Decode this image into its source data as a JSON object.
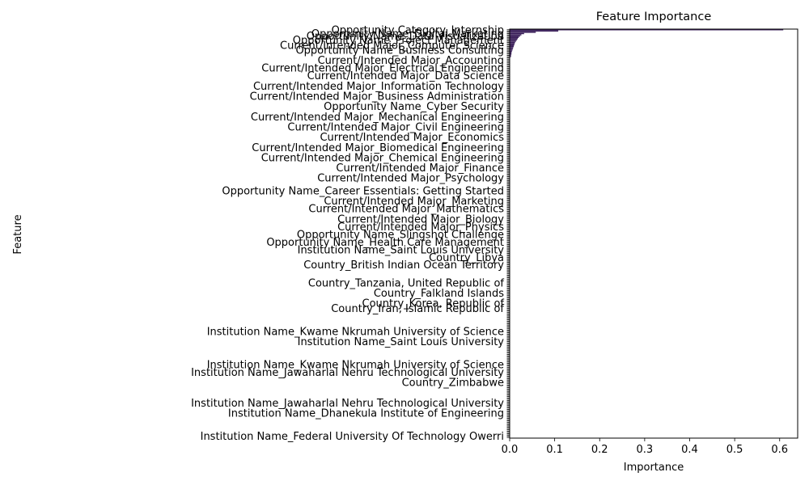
{
  "chart_data": {
    "type": "bar",
    "orientation": "horizontal",
    "title": "Feature Importance",
    "xlabel": "Importance",
    "ylabel": "Feature",
    "xlim": [
      0,
      0.64
    ],
    "xticks": [
      "0.0",
      "0.1",
      "0.2",
      "0.3",
      "0.4",
      "0.5",
      "0.6"
    ],
    "grid": false,
    "legend": "none",
    "bar_color": "#3b1f5a",
    "top_values": [
      0.608,
      0.108,
      0.058,
      0.032,
      0.026,
      0.023,
      0.02,
      0.018,
      0.016,
      0.014,
      0.012,
      0.011,
      0.01,
      0.009,
      0.008,
      0.007,
      0.006,
      0.005,
      0.004,
      0.004,
      0.003,
      0.003
    ],
    "feature_count": 320,
    "visible_labels": [
      {
        "label": "Opportunity Category_Internship",
        "index": 0
      },
      {
        "label": "Opportunity Name_Digital Marketing",
        "index": 3
      },
      {
        "label": "Opportunity Name_Data Visualization",
        "index": 5
      },
      {
        "label": "Opportunity Name_Project Management",
        "index": 8
      },
      {
        "label": "Current/Intended Major_Computer Science",
        "index": 12
      },
      {
        "label": "Opportunity Name_Business Consulting",
        "index": 16
      },
      {
        "label": "Current/Intended Major_Accounting",
        "index": 24
      },
      {
        "label": "Current/Intended Major_Electrical Engineering",
        "index": 30
      },
      {
        "label": "Current/Intended Major_Data Science",
        "index": 36
      },
      {
        "label": "Current/Intended Major_Information Technology",
        "index": 44
      },
      {
        "label": "Current/Intended Major_Business Administration",
        "index": 52
      },
      {
        "label": "Opportunity Name_Cyber Security",
        "index": 60
      },
      {
        "label": "Current/Intended Major_Mechanical Engineering",
        "index": 68
      },
      {
        "label": "Current/Intended Major_Civil Engineering",
        "index": 76
      },
      {
        "label": "Current/Intended Major_Economics",
        "index": 84
      },
      {
        "label": "Current/Intended Major_Biomedical Engineering",
        "index": 92
      },
      {
        "label": "Current/Intended Major_Chemical Engineering",
        "index": 100
      },
      {
        "label": "Current/Intended Major_Finance",
        "index": 108
      },
      {
        "label": "Current/Intended Major_Psychology",
        "index": 116
      },
      {
        "label": "Opportunity Name_Career Essentials: Getting Started",
        "index": 126
      },
      {
        "label": "Current/Intended Major_Marketing",
        "index": 134
      },
      {
        "label": "Current/Intended Major_Mathematics",
        "index": 140
      },
      {
        "label": "Current/Intended Major_Biology",
        "index": 148
      },
      {
        "label": "Current/Intended Major_Physics",
        "index": 154
      },
      {
        "label": "Opportunity Name_Slingshot Challenge",
        "index": 160
      },
      {
        "label": "Opportunity Name_Health Care Management",
        "index": 166
      },
      {
        "label": "Institution Name_Saint Louis University",
        "index": 172
      },
      {
        "label": "Country_Libya",
        "index": 178
      },
      {
        "label": "Country_British Indian Ocean Territory",
        "index": 184
      },
      {
        "label": "Country_Tanzania, United Republic of",
        "index": 198
      },
      {
        "label": "Country_Falkland Islands",
        "index": 206
      },
      {
        "label": "Country_Korea, Republic of",
        "index": 214
      },
      {
        "label": "Country_Iran, Islamic Republic of",
        "index": 218
      },
      {
        "label": "Institution Name_Kwame Nkrumah University of Science",
        "index": 236
      },
      {
        "label": "Institution Name_Saint Louis University",
        "index": 244
      },
      {
        "label": "Institution Name_Kwame Nkrumah University of Science",
        "index": 262
      },
      {
        "label": "Institution Name_Jawaharlal Nehru Technological University",
        "index": 268
      },
      {
        "label": "Country_Zimbabwe",
        "index": 276
      },
      {
        "label": "Institution Name_Jawaharlal Nehru Technological University",
        "index": 292
      },
      {
        "label": "Institution Name_Dhanekula Institute of Engineering",
        "index": 300
      },
      {
        "label": "Institution Name_Federal University Of Technology Owerri",
        "index": 318
      }
    ]
  }
}
